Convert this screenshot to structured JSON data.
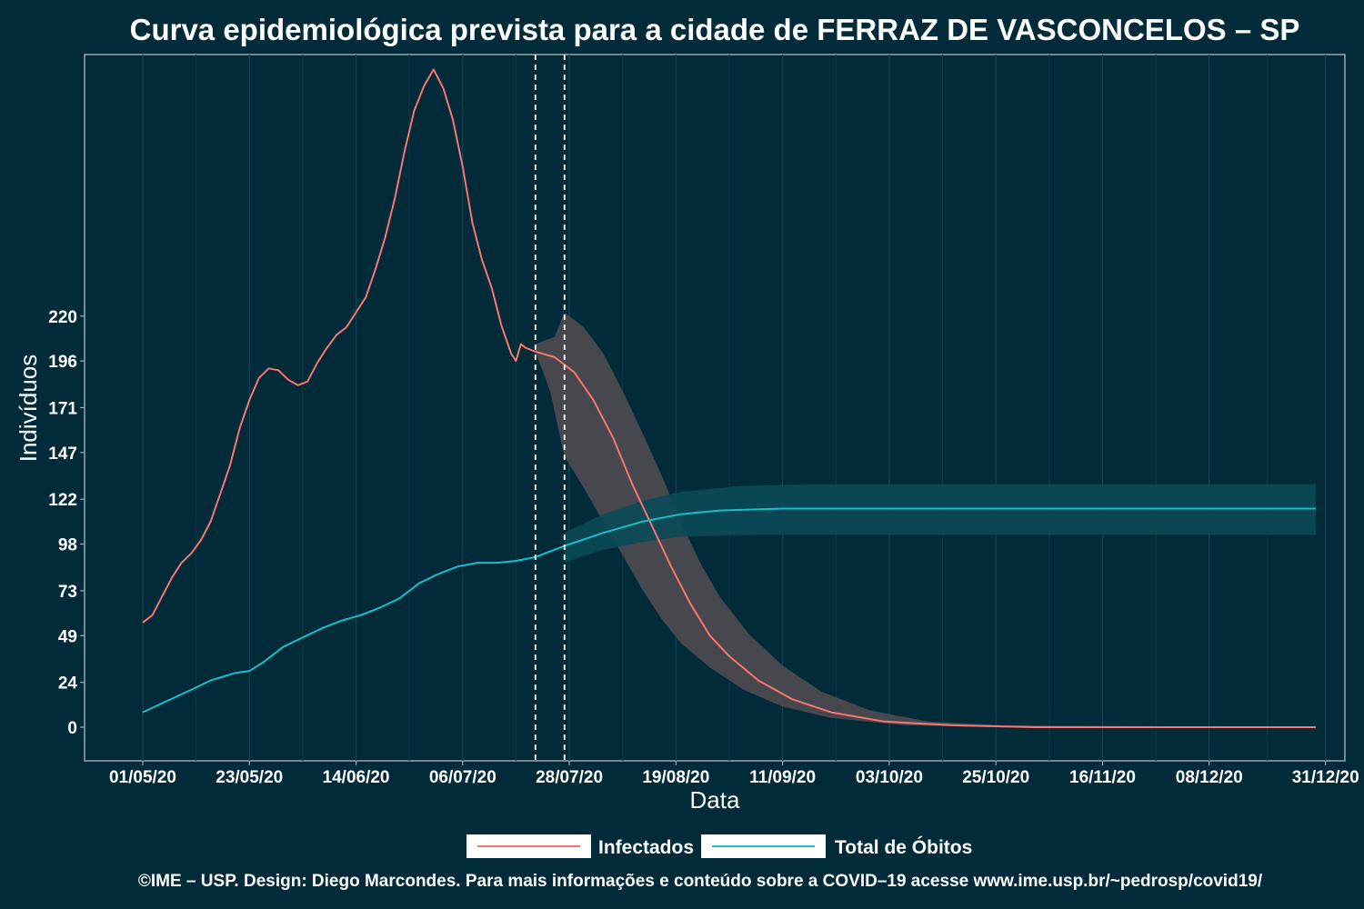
{
  "chart_data": {
    "type": "line",
    "title": "Curva epidemiológica prevista para a cidade de FERRAZ DE VASCONCELOS – SP",
    "xlabel": "Data",
    "ylabel": "Indivíduos",
    "x_tick_labels": [
      "01/05/20",
      "23/05/20",
      "14/06/20",
      "06/07/20",
      "28/07/20",
      "19/08/20",
      "11/09/20",
      "03/10/20",
      "25/10/20",
      "16/11/20",
      "08/12/20",
      "31/12/20"
    ],
    "y_tick_labels": [
      "0",
      "24",
      "49",
      "73",
      "98",
      "122",
      "147",
      "171",
      "196",
      "220"
    ],
    "y_tick_values": [
      0,
      24,
      49,
      73,
      98,
      122,
      147,
      171,
      196,
      220
    ],
    "ylim": [
      -18,
      360
    ],
    "xlim": [
      "2020-04-19",
      "2021-01-04"
    ],
    "grid": true,
    "vertical_markers": [
      "2020-07-21",
      "2020-07-27"
    ],
    "legend_position": "bottom",
    "series": [
      {
        "name": "Infectados",
        "color": "#f8766d",
        "band_color": "#4a4a4f",
        "observed": [
          [
            "2020-05-01",
            56
          ],
          [
            "2020-05-03",
            60
          ],
          [
            "2020-05-05",
            70
          ],
          [
            "2020-05-07",
            80
          ],
          [
            "2020-05-09",
            88
          ],
          [
            "2020-05-11",
            93
          ],
          [
            "2020-05-13",
            100
          ],
          [
            "2020-05-15",
            110
          ],
          [
            "2020-05-17",
            125
          ],
          [
            "2020-05-19",
            140
          ],
          [
            "2020-05-21",
            160
          ],
          [
            "2020-05-23",
            175
          ],
          [
            "2020-05-25",
            187
          ],
          [
            "2020-05-27",
            192
          ],
          [
            "2020-05-29",
            191
          ],
          [
            "2020-05-31",
            186
          ],
          [
            "2020-06-02",
            183
          ],
          [
            "2020-06-04",
            185
          ],
          [
            "2020-06-06",
            195
          ],
          [
            "2020-06-08",
            203
          ],
          [
            "2020-06-10",
            210
          ],
          [
            "2020-06-12",
            214
          ],
          [
            "2020-06-14",
            222
          ],
          [
            "2020-06-16",
            230
          ],
          [
            "2020-06-18",
            245
          ],
          [
            "2020-06-20",
            262
          ],
          [
            "2020-06-22",
            283
          ],
          [
            "2020-06-24",
            308
          ],
          [
            "2020-06-26",
            330
          ],
          [
            "2020-06-28",
            343
          ],
          [
            "2020-06-30",
            352
          ],
          [
            "2020-07-02",
            342
          ],
          [
            "2020-07-04",
            325
          ],
          [
            "2020-07-06",
            300
          ],
          [
            "2020-07-08",
            270
          ],
          [
            "2020-07-10",
            250
          ],
          [
            "2020-07-12",
            235
          ],
          [
            "2020-07-14",
            215
          ],
          [
            "2020-07-16",
            200
          ],
          [
            "2020-07-17",
            196
          ],
          [
            "2020-07-18",
            205
          ],
          [
            "2020-07-19",
            203
          ],
          [
            "2020-07-21",
            201
          ]
        ],
        "forecast": [
          [
            "2020-07-21",
            201
          ],
          [
            "2020-07-25",
            198
          ],
          [
            "2020-07-29",
            190
          ],
          [
            "2020-08-02",
            175
          ],
          [
            "2020-08-06",
            155
          ],
          [
            "2020-08-10",
            130
          ],
          [
            "2020-08-14",
            108
          ],
          [
            "2020-08-18",
            86
          ],
          [
            "2020-08-22",
            66
          ],
          [
            "2020-08-26",
            49
          ],
          [
            "2020-08-30",
            38
          ],
          [
            "2020-09-05",
            25
          ],
          [
            "2020-09-12",
            15
          ],
          [
            "2020-09-20",
            8
          ],
          [
            "2020-10-01",
            3
          ],
          [
            "2020-10-15",
            1
          ],
          [
            "2020-11-01",
            0
          ],
          [
            "2020-12-29",
            0
          ]
        ],
        "band_upper": [
          [
            "2020-07-21",
            205
          ],
          [
            "2020-07-25",
            209
          ],
          [
            "2020-07-27",
            222
          ],
          [
            "2020-07-31",
            214
          ],
          [
            "2020-08-04",
            200
          ],
          [
            "2020-08-08",
            180
          ],
          [
            "2020-08-12",
            158
          ],
          [
            "2020-08-16",
            135
          ],
          [
            "2020-08-20",
            110
          ],
          [
            "2020-08-24",
            88
          ],
          [
            "2020-08-28",
            70
          ],
          [
            "2020-09-03",
            50
          ],
          [
            "2020-09-10",
            33
          ],
          [
            "2020-09-18",
            19
          ],
          [
            "2020-09-28",
            9
          ],
          [
            "2020-10-10",
            3
          ],
          [
            "2020-10-25",
            1
          ],
          [
            "2020-12-29",
            0
          ]
        ],
        "band_lower": [
          [
            "2020-07-21",
            201
          ],
          [
            "2020-07-24",
            180
          ],
          [
            "2020-07-27",
            145
          ],
          [
            "2020-07-31",
            128
          ],
          [
            "2020-08-04",
            110
          ],
          [
            "2020-08-08",
            92
          ],
          [
            "2020-08-12",
            74
          ],
          [
            "2020-08-16",
            58
          ],
          [
            "2020-08-20",
            45
          ],
          [
            "2020-08-26",
            32
          ],
          [
            "2020-09-02",
            20
          ],
          [
            "2020-09-10",
            11
          ],
          [
            "2020-09-20",
            5
          ],
          [
            "2020-10-05",
            1
          ],
          [
            "2020-10-25",
            0
          ],
          [
            "2020-12-29",
            0
          ]
        ]
      },
      {
        "name": "Total de Óbitos",
        "color": "#19bfc8",
        "band_color": "#0a4a58",
        "observed": [
          [
            "2020-05-01",
            8
          ],
          [
            "2020-05-06",
            14
          ],
          [
            "2020-05-11",
            20
          ],
          [
            "2020-05-15",
            25
          ],
          [
            "2020-05-20",
            29
          ],
          [
            "2020-05-23",
            30
          ],
          [
            "2020-05-26",
            35
          ],
          [
            "2020-05-30",
            43
          ],
          [
            "2020-06-03",
            48
          ],
          [
            "2020-06-07",
            53
          ],
          [
            "2020-06-11",
            57
          ],
          [
            "2020-06-15",
            60
          ],
          [
            "2020-06-19",
            64
          ],
          [
            "2020-06-23",
            69
          ],
          [
            "2020-06-27",
            77
          ],
          [
            "2020-07-01",
            82
          ],
          [
            "2020-07-05",
            86
          ],
          [
            "2020-07-09",
            88
          ],
          [
            "2020-07-13",
            88
          ],
          [
            "2020-07-17",
            89
          ],
          [
            "2020-07-21",
            91
          ]
        ],
        "forecast": [
          [
            "2020-07-21",
            91
          ],
          [
            "2020-07-27",
            97
          ],
          [
            "2020-08-04",
            104
          ],
          [
            "2020-08-12",
            110
          ],
          [
            "2020-08-20",
            114
          ],
          [
            "2020-08-28",
            116
          ],
          [
            "2020-09-10",
            117
          ],
          [
            "2020-10-01",
            117
          ],
          [
            "2020-11-01",
            117
          ],
          [
            "2020-12-29",
            117
          ]
        ],
        "band_upper": [
          [
            "2020-07-27",
            104
          ],
          [
            "2020-08-04",
            114
          ],
          [
            "2020-08-12",
            121
          ],
          [
            "2020-08-20",
            126
          ],
          [
            "2020-09-01",
            129
          ],
          [
            "2020-09-15",
            130
          ],
          [
            "2020-10-15",
            130
          ],
          [
            "2020-12-29",
            130
          ]
        ],
        "band_lower": [
          [
            "2020-07-27",
            88
          ],
          [
            "2020-08-04",
            95
          ],
          [
            "2020-08-12",
            99
          ],
          [
            "2020-08-20",
            102
          ],
          [
            "2020-09-05",
            103
          ],
          [
            "2020-10-15",
            103
          ],
          [
            "2020-12-29",
            103
          ]
        ]
      }
    ]
  },
  "legend": {
    "items": [
      {
        "label": "Infectados",
        "color": "#f8766d"
      },
      {
        "label": "Total de Óbitos",
        "color": "#19bfc8"
      }
    ]
  },
  "caption": "©IME – USP. Design: Diego Marcondes. Para mais informações e conteúdo sobre a COVID–19 acesse www.ime.usp.br/~pedrosp/covid19/"
}
